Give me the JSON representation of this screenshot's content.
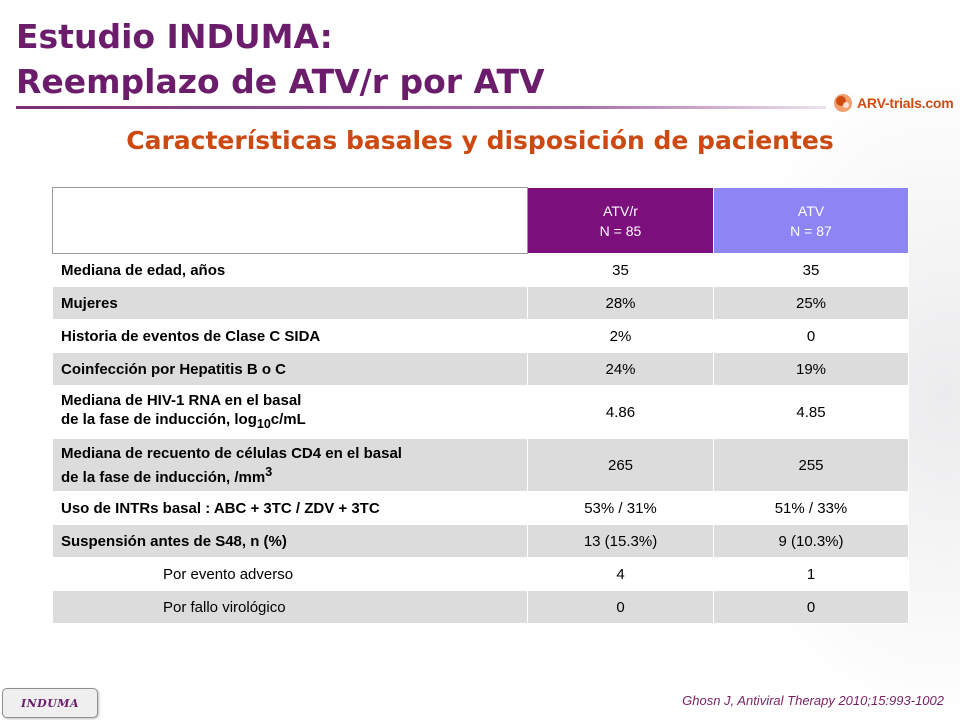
{
  "title": {
    "line1": "Estudio INDUMA:",
    "line2": "Reemplazo de ATV/r por ATV"
  },
  "logo": {
    "text": "ARV-trials.com",
    "icon": "arv-trials-logo-icon"
  },
  "subtitle": "Características basales y disposición de pacientes",
  "table": {
    "columns": [
      {
        "name": "ATV/r",
        "n": "N = 85",
        "color": "#7b0f7b"
      },
      {
        "name": "ATV",
        "n": "N = 87",
        "color": "#8d85f3"
      }
    ],
    "rows": [
      {
        "label": "Mediana de edad, años",
        "v1": "35",
        "v2": "35"
      },
      {
        "label": "Mujeres",
        "v1": "28%",
        "v2": "25%"
      },
      {
        "label": "Historia de eventos de Clase C SIDA",
        "v1": "2%",
        "v2": "0"
      },
      {
        "label": "Coinfección por Hepatitis B o C",
        "v1": "24%",
        "v2": "19%"
      },
      {
        "label_line1": "Mediana de HIV-1 RNA en el basal",
        "label_line2_pre": "de la fase de inducción, log",
        "label_sub": "10",
        "label_line2_post": "c/mL",
        "v1": "4.86",
        "v2": "4.85"
      },
      {
        "label_line1": "Mediana de recuento de células CD4 en el basal",
        "label_line2_pre": "de la fase de inducción, /mm",
        "label_sup": "3",
        "v1": "265",
        "v2": "255"
      },
      {
        "label": "Uso de INTRs basal : ABC + 3TC / ZDV + 3TC",
        "v1": "53% / 31%",
        "v2": "51% / 33%"
      },
      {
        "label": "Suspensión antes de S48, n (%)",
        "v1": "13 (15.3%)",
        "v2": "9 (10.3%)"
      },
      {
        "label": "Por evento adverso",
        "v1": "4",
        "v2": "1"
      },
      {
        "label": "Por fallo virológico",
        "v1": "0",
        "v2": "0"
      }
    ]
  },
  "footer": {
    "reference": "Ghosn J, Antiviral Therapy 2010;15:993-1002",
    "badge": "INDUMA"
  }
}
